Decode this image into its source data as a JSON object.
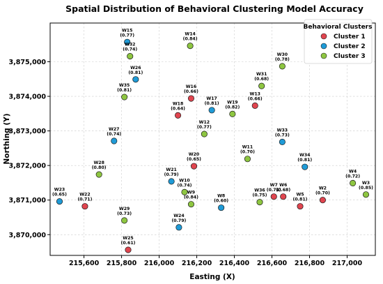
{
  "chart_data": {
    "type": "scatter",
    "title": "Spatial Distribution of Behavioral Clustering Model Accuracy",
    "xlabel": "Easting (X)",
    "ylabel": "Northing (Y)",
    "xlim": [
      215420,
      217150
    ],
    "ylim": [
      3869400,
      3876120
    ],
    "xticks": [
      215400,
      215600,
      215800,
      216000,
      216200,
      216400,
      216600,
      216800,
      217000
    ],
    "xtick_labels": [
      "215,400",
      "215,600",
      "215,800",
      "216,000",
      "216,200",
      "216,400",
      "216,600",
      "216,800",
      "217,000"
    ],
    "yticks": [
      3870000,
      3871000,
      3872000,
      3873000,
      3874000,
      3875000
    ],
    "ytick_labels": [
      "3,870,000",
      "3,871,000",
      "3,872,000",
      "3,873,000",
      "3,874,000",
      "3,875,000"
    ],
    "grid": true,
    "legend": {
      "title": "Behavioral Clusters",
      "placement": "top-right"
    },
    "series": [
      {
        "name": "Cluster 1",
        "color": "#e0454f",
        "points": [
          {
            "label": "W2",
            "value": "(0.70)",
            "x": 216870,
            "y": 3871000
          },
          {
            "label": "W5",
            "value": "(0.81)",
            "x": 216750,
            "y": 3870820
          },
          {
            "label": "W6",
            "value": "(0.68)",
            "x": 216660,
            "y": 3871100
          },
          {
            "label": "W7",
            "value": "(0.71)",
            "x": 216610,
            "y": 3871100
          },
          {
            "label": "W13",
            "value": "(0.66)",
            "x": 216510,
            "y": 3873730
          },
          {
            "label": "W16",
            "value": "(0.66)",
            "x": 216170,
            "y": 3873940
          },
          {
            "label": "W18",
            "value": "(0.64)",
            "x": 216100,
            "y": 3873450
          },
          {
            "label": "W20",
            "value": "(0.65)",
            "x": 216185,
            "y": 3871980
          },
          {
            "label": "W22",
            "value": "(0.71)",
            "x": 215605,
            "y": 3870820
          },
          {
            "label": "W25",
            "value": "(0.61)",
            "x": 215835,
            "y": 3869560
          }
        ]
      },
      {
        "name": "Cluster 2",
        "color": "#1f9bd7",
        "points": [
          {
            "label": "W8",
            "value": "(0.60)",
            "x": 216330,
            "y": 3870780
          },
          {
            "label": "W15",
            "value": "(0.77)",
            "x": 215830,
            "y": 3875570
          },
          {
            "label": "W17",
            "value": "(0.81)",
            "x": 216280,
            "y": 3873600
          },
          {
            "label": "W21",
            "value": "(0.79)",
            "x": 216065,
            "y": 3871540
          },
          {
            "label": "W23",
            "value": "(0.65)",
            "x": 215470,
            "y": 3870960
          },
          {
            "label": "W24",
            "value": "(0.79)",
            "x": 216105,
            "y": 3870210
          },
          {
            "label": "W26",
            "value": "(0.81)",
            "x": 215875,
            "y": 3874490
          },
          {
            "label": "W27",
            "value": "(0.74)",
            "x": 215760,
            "y": 3872710
          },
          {
            "label": "W33",
            "value": "(0.73)",
            "x": 216655,
            "y": 3872680
          },
          {
            "label": "W34",
            "value": "(0.81)",
            "x": 216775,
            "y": 3871960
          }
        ]
      },
      {
        "name": "Cluster 3",
        "color": "#8ec641",
        "points": [
          {
            "label": "W3",
            "value": "(0.85)",
            "x": 217100,
            "y": 3871160
          },
          {
            "label": "W4",
            "value": "(0.72)",
            "x": 217030,
            "y": 3871490
          },
          {
            "label": "W9",
            "value": "(0.84)",
            "x": 216170,
            "y": 3870880
          },
          {
            "label": "W10",
            "value": "(0.74)",
            "x": 216135,
            "y": 3871230
          },
          {
            "label": "W11",
            "value": "(0.70)",
            "x": 216470,
            "y": 3872190
          },
          {
            "label": "W12",
            "value": "(0.77)",
            "x": 216240,
            "y": 3872910
          },
          {
            "label": "W14",
            "value": "(0.84)",
            "x": 216165,
            "y": 3875460
          },
          {
            "label": "W19",
            "value": "(0.82)",
            "x": 216390,
            "y": 3873490
          },
          {
            "label": "W28",
            "value": "(0.80)",
            "x": 215680,
            "y": 3871740
          },
          {
            "label": "W29",
            "value": "(0.73)",
            "x": 215815,
            "y": 3870410
          },
          {
            "label": "W30",
            "value": "(0.78)",
            "x": 216655,
            "y": 3874870
          },
          {
            "label": "W31",
            "value": "(0.68)",
            "x": 216545,
            "y": 3874300
          },
          {
            "label": "W32",
            "value": "(0.74)",
            "x": 215845,
            "y": 3875160
          },
          {
            "label": "W35",
            "value": "(0.81)",
            "x": 215815,
            "y": 3873980
          },
          {
            "label": "W36",
            "value": "(0.75)",
            "x": 216535,
            "y": 3870940
          }
        ]
      }
    ]
  }
}
